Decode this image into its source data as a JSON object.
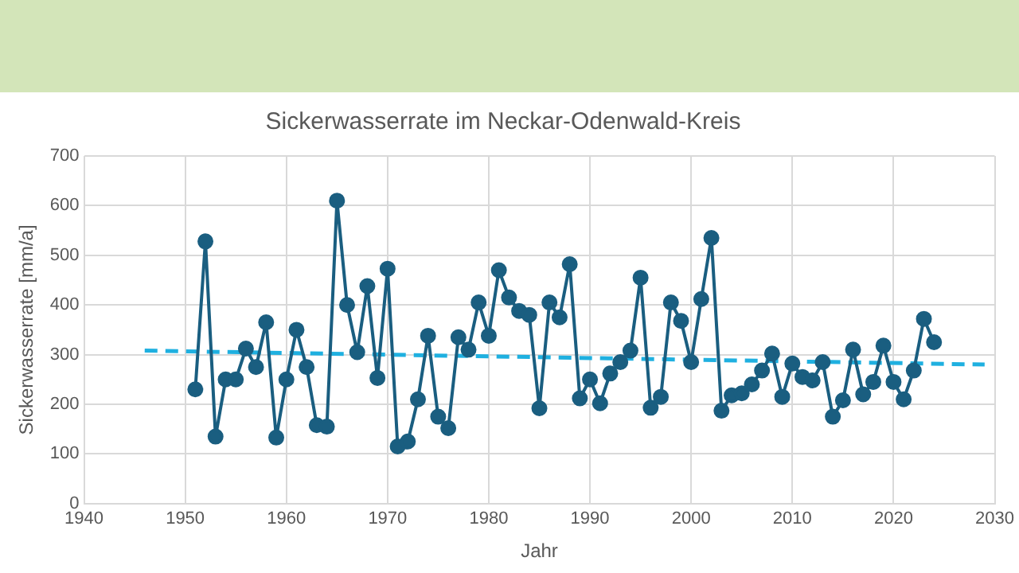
{
  "chart_data": {
    "type": "line",
    "title": "Sickerwasserrate im Neckar-Odenwald-Kreis",
    "xlabel": "Jahr",
    "ylabel": "Sickerwasserrate [mm/a]",
    "x": [
      1951,
      1952,
      1953,
      1954,
      1955,
      1956,
      1957,
      1958,
      1959,
      1960,
      1961,
      1962,
      1963,
      1964,
      1965,
      1966,
      1967,
      1968,
      1969,
      1970,
      1971,
      1972,
      1973,
      1974,
      1975,
      1976,
      1977,
      1978,
      1979,
      1980,
      1981,
      1982,
      1983,
      1984,
      1985,
      1986,
      1987,
      1988,
      1989,
      1990,
      1991,
      1992,
      1993,
      1994,
      1995,
      1996,
      1997,
      1998,
      1999,
      2000,
      2001,
      2002,
      2003,
      2004,
      2005,
      2006,
      2007,
      2008,
      2009,
      2010,
      2011,
      2012,
      2013,
      2014,
      2015,
      2016,
      2017,
      2018,
      2019,
      2020,
      2021,
      2022,
      2023,
      2024
    ],
    "series": [
      {
        "color": "#1a5e80",
        "marker": "circle",
        "line_style": "solid",
        "values": [
          230,
          528,
          135,
          250,
          250,
          312,
          275,
          365,
          133,
          250,
          350,
          275,
          158,
          155,
          610,
          400,
          305,
          438,
          253,
          473,
          115,
          125,
          210,
          338,
          175,
          152,
          335,
          310,
          405,
          338,
          470,
          415,
          388,
          380,
          192,
          405,
          375,
          482,
          212,
          250,
          202,
          262,
          285,
          308,
          455,
          193,
          215,
          405,
          368,
          285,
          412,
          535,
          187,
          218,
          222,
          240,
          268,
          302,
          215,
          282,
          255,
          248,
          285,
          175,
          208,
          310,
          220,
          245,
          318,
          245,
          210,
          268,
          372,
          325
        ]
      },
      {
        "type": "line",
        "color": "#1fb0e0",
        "marker": "none",
        "line_style": "dashed",
        "x": [
          1946,
          2029
        ],
        "values": [
          308,
          280
        ]
      }
    ],
    "xlim": [
      1940,
      2030
    ],
    "xticks": [
      1940,
      1950,
      1960,
      1970,
      1980,
      1990,
      2000,
      2010,
      2020,
      2030
    ],
    "ylim": [
      0,
      700
    ],
    "yticks": [
      0,
      100,
      200,
      300,
      400,
      500,
      600,
      700
    ],
    "grid": true,
    "legend": false
  }
}
